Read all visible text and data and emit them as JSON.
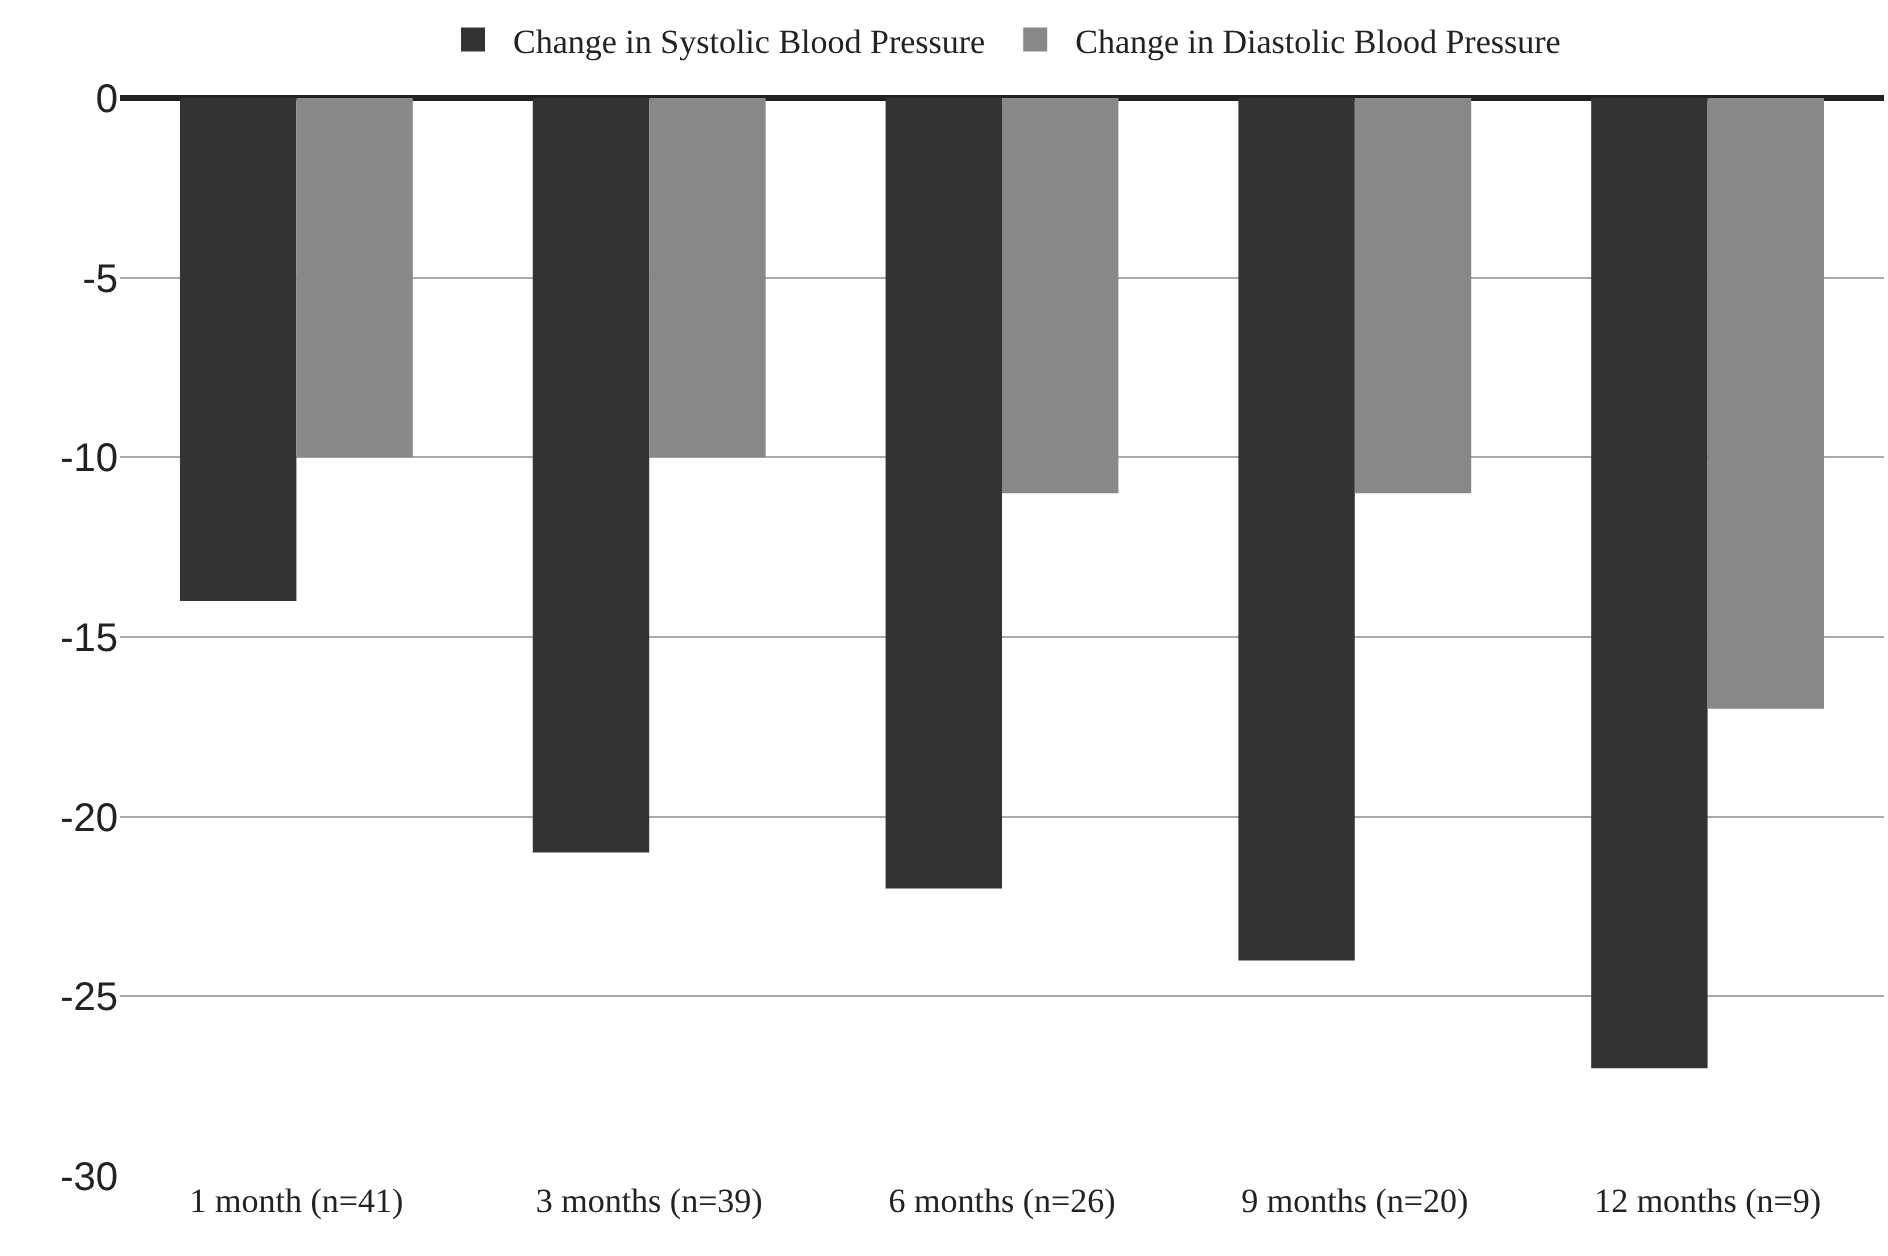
{
  "chart_data": {
    "type": "bar",
    "categories": [
      "1 month (n=41)",
      "3 months (n=39)",
      "6 months (n=26)",
      "9 months (n=20)",
      "12 months (n=9)"
    ],
    "series": [
      {
        "name": "Change in Systolic Blood Pressure",
        "color": "#333333",
        "values": [
          -14,
          -21,
          -22,
          -24,
          -27
        ]
      },
      {
        "name": "Change in Diastolic Blood Pressure",
        "color": "#888888",
        "values": [
          -10,
          -10,
          -11,
          -11,
          -17
        ]
      }
    ],
    "ylim": [
      -30,
      0
    ],
    "yticks": [
      -30,
      -25,
      -20,
      -15,
      -10,
      -5,
      0
    ],
    "grid": "y",
    "legend": "top"
  }
}
